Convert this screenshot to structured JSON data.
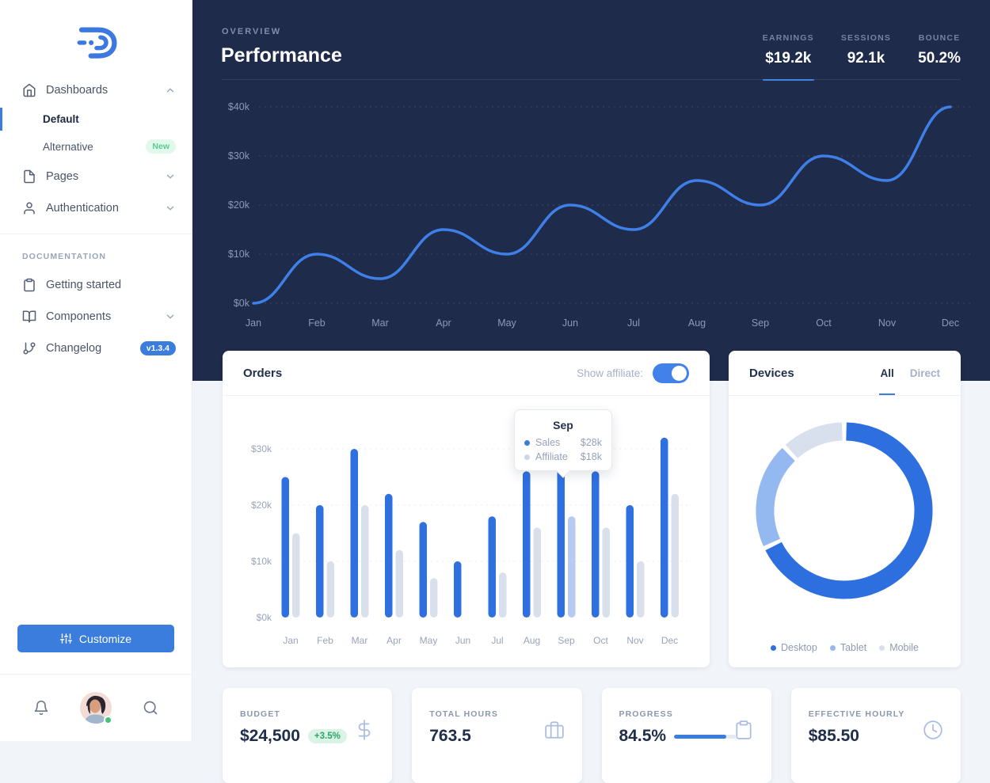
{
  "colors": {
    "primary_blue": "#3b7ddd",
    "line_blue": "#3f7fe8",
    "bar_sales": "#2f70e0",
    "bar_affiliate": "#d9e0ec",
    "bar_affiliate_highlight": "#b7cbf2",
    "dark_header": "#1f2b4b",
    "content_bg": "#f1f4f9",
    "green_badge_text": "#2fa26b",
    "donut_desktop": "#2e6fe0",
    "donut_tablet": "#94b8f0",
    "donut_mobile": "#d8e0ee"
  },
  "sidebar": {
    "nav": [
      {
        "label": "Dashboards",
        "icon": "home",
        "chevron": "up"
      },
      {
        "label": "Default",
        "active": true
      },
      {
        "label": "Alternative",
        "badge": "New"
      },
      {
        "label": "Pages",
        "icon": "file",
        "chevron": "down"
      },
      {
        "label": "Authentication",
        "icon": "user",
        "chevron": "down"
      }
    ],
    "section_label": "DOCUMENTATION",
    "docs": [
      {
        "label": "Getting started",
        "icon": "clipboard"
      },
      {
        "label": "Components",
        "icon": "book-open",
        "chevron": "down"
      },
      {
        "label": "Changelog",
        "icon": "git-branch",
        "badge": "v1.3.4"
      }
    ],
    "customize_label": "Customize"
  },
  "header": {
    "eyebrow": "OVERVIEW",
    "title": "Performance",
    "stats": [
      {
        "label": "EARNINGS",
        "value": "$19.2k",
        "active": true
      },
      {
        "label": "SESSIONS",
        "value": "92.1k"
      },
      {
        "label": "BOUNCE",
        "value": "50.2%"
      }
    ]
  },
  "chart_data": [
    {
      "type": "line",
      "title": "Performance",
      "x": [
        "Jan",
        "Feb",
        "Mar",
        "Apr",
        "May",
        "Jun",
        "Jul",
        "Aug",
        "Sep",
        "Oct",
        "Nov",
        "Dec"
      ],
      "values": [
        0,
        10,
        5,
        15,
        10,
        20,
        15,
        25,
        20,
        30,
        25,
        40
      ],
      "ytick_values": [
        0,
        10,
        20,
        30,
        40
      ],
      "ytick_labels": [
        "$0k",
        "$10k",
        "$20k",
        "$30k",
        "$40k"
      ],
      "ylim": [
        0,
        40
      ],
      "grid": "dotted",
      "legend_position": "none"
    },
    {
      "type": "bar",
      "title": "Orders",
      "categories": [
        "Jan",
        "Feb",
        "Mar",
        "Apr",
        "May",
        "Jun",
        "Jul",
        "Aug",
        "Sep",
        "Oct",
        "Nov",
        "Dec"
      ],
      "series": [
        {
          "name": "Sales",
          "values": [
            25,
            20,
            30,
            22,
            17,
            10,
            18,
            26,
            28,
            26,
            20,
            32
          ]
        },
        {
          "name": "Affiliate",
          "values": [
            15,
            10,
            20,
            12,
            7,
            0,
            8,
            16,
            18,
            16,
            10,
            22
          ]
        }
      ],
      "highlight_index": 8,
      "ytick_values": [
        0,
        10,
        20,
        30
      ],
      "ytick_labels": [
        "$0k",
        "$10k",
        "$20k",
        "$30k"
      ],
      "ylim": [
        0,
        32
      ],
      "grid": "dotted",
      "legend_position": "none"
    },
    {
      "type": "pie",
      "title": "Devices",
      "labels": [
        "Desktop",
        "Tablet",
        "Mobile"
      ],
      "values": [
        68,
        20,
        12
      ],
      "donut": true,
      "legend_position": "bottom"
    }
  ],
  "orders_card": {
    "title": "Orders",
    "toggle_label": "Show affiliate:",
    "toggle_on": true,
    "tooltip": {
      "title": "Sep",
      "rows": [
        {
          "label": "Sales",
          "value": "$28k"
        },
        {
          "label": "Affiliate",
          "value": "$18k"
        }
      ]
    }
  },
  "devices_card": {
    "title": "Devices",
    "tabs": [
      {
        "label": "All",
        "active": true
      },
      {
        "label": "Direct"
      }
    ],
    "legend": [
      "Desktop",
      "Tablet",
      "Mobile"
    ]
  },
  "kpis": [
    {
      "label": "BUDGET",
      "value": "$24,500",
      "badge": "+3.5%",
      "icon": "dollar-sign"
    },
    {
      "label": "TOTAL HOURS",
      "value": "763.5",
      "icon": "briefcase"
    },
    {
      "label": "PROGRESS",
      "value": "84.5%",
      "progress": 84.5,
      "icon": "clipboard"
    },
    {
      "label": "EFFECTIVE HOURLY",
      "value": "$85.50",
      "icon": "clock"
    }
  ]
}
